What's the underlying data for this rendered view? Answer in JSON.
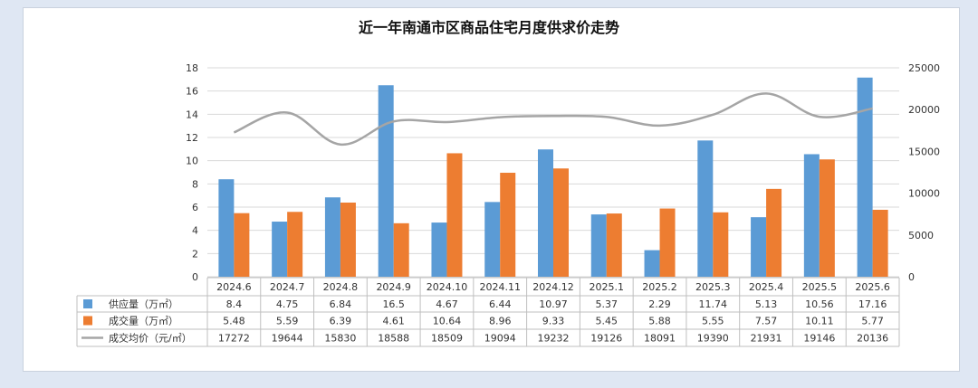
{
  "chart_data": {
    "type": "bar",
    "title": "近一年南通市区商品住宅月度供求价走势",
    "categories": [
      "2024.6",
      "2024.7",
      "2024.8",
      "2024.9",
      "2024.10",
      "2024.11",
      "2024.12",
      "2025.1",
      "2025.2",
      "2025.3",
      "2025.4",
      "2025.5",
      "2025.6"
    ],
    "series": [
      {
        "name": "供应量（万㎡）",
        "type": "bar",
        "axis": "left",
        "color": "#5b9bd5",
        "values": [
          8.4,
          4.75,
          6.84,
          16.5,
          4.67,
          6.44,
          10.97,
          5.37,
          2.29,
          11.74,
          5.13,
          10.56,
          17.16
        ],
        "labels": [
          "8.4",
          "4.75",
          "6.84",
          "16.5",
          "4.67",
          "6.44",
          "10.97",
          "5.37",
          "2.29",
          "11.74",
          "5.13",
          "10.56",
          "17.16"
        ]
      },
      {
        "name": "成交量（万㎡）",
        "type": "bar",
        "axis": "left",
        "color": "#ed7d31",
        "values": [
          5.48,
          5.59,
          6.39,
          4.61,
          10.64,
          8.96,
          9.33,
          5.45,
          5.88,
          5.55,
          7.57,
          10.11,
          5.77
        ],
        "labels": [
          "5.48",
          "5.59",
          "6.39",
          "4.61",
          "10.64",
          "8.96",
          "9.33",
          "5.45",
          "5.88",
          "5.55",
          "7.57",
          "10.11",
          "5.77"
        ]
      },
      {
        "name": "成交均价（元/㎡）",
        "type": "line",
        "axis": "right",
        "color": "#a5a5a5",
        "values": [
          17272,
          19644,
          15830,
          18588,
          18509,
          19094,
          19232,
          19126,
          18091,
          19390,
          21931,
          19146,
          20136
        ],
        "labels": [
          "17272",
          "19644",
          "15830",
          "18588",
          "18509",
          "19094",
          "19232",
          "19126",
          "18091",
          "19390",
          "21931",
          "19146",
          "20136"
        ]
      }
    ],
    "y_left": {
      "min": 0,
      "max": 18,
      "step": 2,
      "ticks": [
        "0",
        "2",
        "4",
        "6",
        "8",
        "10",
        "12",
        "14",
        "16",
        "18"
      ]
    },
    "y_right": {
      "min": 0,
      "max": 25000,
      "step": 5000,
      "ticks": [
        "0",
        "5000",
        "10000",
        "15000",
        "20000",
        "25000"
      ]
    },
    "grid": true,
    "legend": "data-table"
  }
}
